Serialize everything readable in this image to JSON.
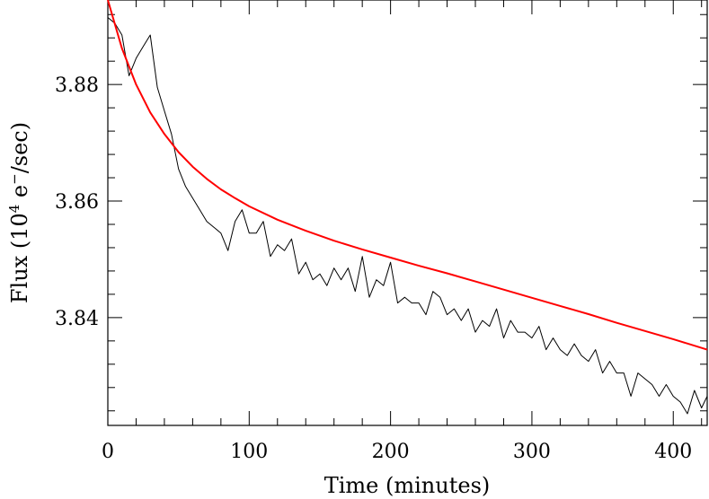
{
  "chart_data": {
    "type": "line",
    "title": "",
    "xlabel": "Time (minutes)",
    "ylabel": {
      "prefix": "Flux (10",
      "sup1": "4",
      "mid": " e",
      "sup2": "−",
      "suffix": "/sec)"
    },
    "xlim": [
      0,
      424
    ],
    "ylim": [
      3.8215,
      3.8945
    ],
    "x_major_ticks": [
      0,
      100,
      200,
      300,
      400
    ],
    "x_tick_labels": [
      "0",
      "100",
      "200",
      "300",
      "400"
    ],
    "x_minor_step": 20,
    "y_major_ticks": [
      3.84,
      3.86,
      3.88
    ],
    "y_tick_labels": [
      "3.84",
      "3.86",
      "3.88"
    ],
    "y_minor_step": 0.004,
    "grid": false,
    "series": [
      {
        "style": "black thin line",
        "color": "#000000",
        "x": [
          0,
          5,
          10,
          15,
          20,
          25,
          30,
          35,
          40,
          45,
          50,
          55,
          60,
          65,
          70,
          75,
          80,
          85,
          90,
          95,
          100,
          105,
          110,
          115,
          120,
          125,
          130,
          135,
          140,
          145,
          150,
          155,
          160,
          165,
          170,
          175,
          180,
          185,
          190,
          195,
          200,
          205,
          210,
          215,
          220,
          225,
          230,
          235,
          240,
          245,
          250,
          255,
          260,
          265,
          270,
          275,
          280,
          285,
          290,
          295,
          300,
          305,
          310,
          315,
          320,
          325,
          330,
          335,
          340,
          345,
          350,
          355,
          360,
          365,
          370,
          375,
          380,
          385,
          390,
          395,
          400,
          405,
          410,
          415,
          420,
          424
        ],
        "y": [
          3.8915,
          3.8905,
          3.8885,
          3.8815,
          3.8845,
          3.8865,
          3.8885,
          3.8795,
          3.8755,
          3.8715,
          3.8655,
          3.8625,
          3.8605,
          3.8585,
          3.8565,
          3.8555,
          3.8545,
          3.8515,
          3.8565,
          3.8585,
          3.8545,
          3.8545,
          3.8565,
          3.8505,
          3.8525,
          3.8515,
          3.8535,
          3.8475,
          3.8495,
          3.8465,
          3.8475,
          3.8455,
          3.8485,
          3.8465,
          3.8485,
          3.8445,
          3.8505,
          3.8435,
          3.8465,
          3.8455,
          3.8495,
          3.8425,
          3.8435,
          3.8425,
          3.8425,
          3.8405,
          3.8445,
          3.8435,
          3.8405,
          3.8415,
          3.8395,
          3.8415,
          3.8375,
          3.8395,
          3.8385,
          3.8415,
          3.8365,
          3.8395,
          3.8375,
          3.8375,
          3.8365,
          3.8385,
          3.8345,
          3.8365,
          3.8345,
          3.8335,
          3.8355,
          3.8335,
          3.8325,
          3.8345,
          3.8305,
          3.8325,
          3.8305,
          3.8305,
          3.8265,
          3.8305,
          3.8295,
          3.8285,
          3.8265,
          3.8285,
          3.8265,
          3.8255,
          3.8235,
          3.8275,
          3.8245,
          3.8265
        ]
      },
      {
        "style": "red smooth fit",
        "color": "#ff0000",
        "x": [
          0,
          10,
          20,
          30,
          40,
          50,
          60,
          70,
          80,
          90,
          100,
          120,
          140,
          160,
          180,
          200,
          220,
          240,
          260,
          280,
          300,
          320,
          340,
          360,
          380,
          400,
          424
        ],
        "y": [
          3.8945,
          3.8862,
          3.88,
          3.8752,
          3.8715,
          3.8684,
          3.8659,
          3.8638,
          3.862,
          3.8605,
          3.8591,
          3.8568,
          3.8549,
          3.8532,
          3.8517,
          3.8503,
          3.8489,
          3.8476,
          3.8462,
          3.8448,
          3.8434,
          3.842,
          3.8406,
          3.8391,
          3.8377,
          3.8363,
          3.8345
        ]
      }
    ]
  }
}
